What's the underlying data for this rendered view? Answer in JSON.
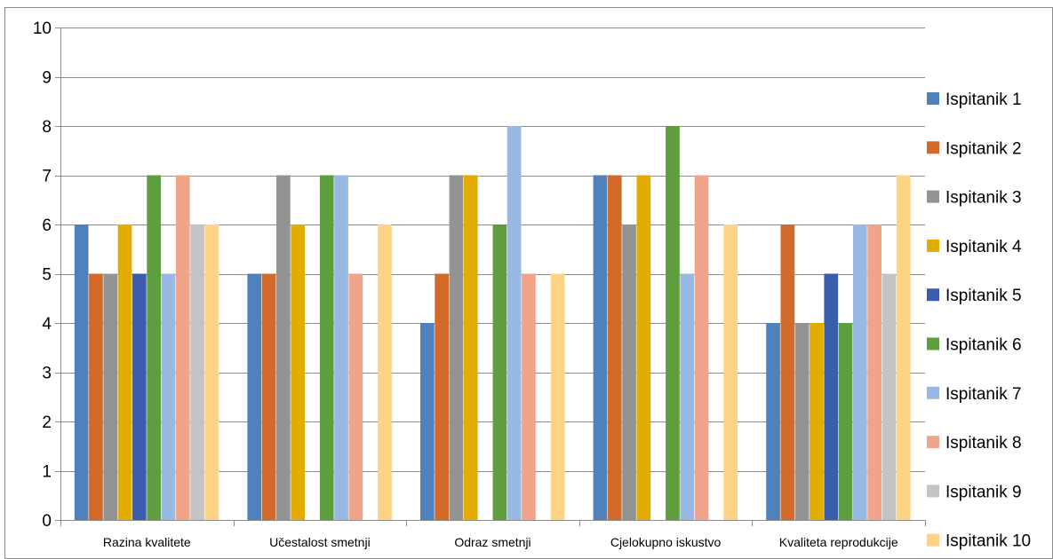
{
  "chart_data": {
    "type": "bar",
    "title": "",
    "xlabel": "",
    "ylabel": "",
    "ylim": [
      0,
      10
    ],
    "yticks": [
      "0",
      "1",
      "2",
      "3",
      "4",
      "5",
      "6",
      "7",
      "8",
      "9",
      "10"
    ],
    "grid": true,
    "legend_position": "right",
    "categories": [
      "Razina kvalitete",
      "Učestalost smetnji",
      "Odraz smetnji",
      "Cjelokupno iskustvo",
      "Kvaliteta reprodukcije"
    ],
    "series": [
      {
        "name": "Ispitanik 1",
        "color": "#4F81BD",
        "values": [
          6,
          5,
          4,
          7,
          4
        ]
      },
      {
        "name": "Ispitanik 2",
        "color": "#D46A2A",
        "values": [
          5,
          5,
          5,
          7,
          6
        ]
      },
      {
        "name": "Ispitanik 3",
        "color": "#939393",
        "values": [
          5,
          7,
          7,
          6,
          4
        ]
      },
      {
        "name": "Ispitanik 4",
        "color": "#E3AC00",
        "values": [
          6,
          6,
          7,
          7,
          4
        ]
      },
      {
        "name": "Ispitanik 5",
        "color": "#3A5DAE",
        "values": [
          5,
          0,
          0,
          0,
          5
        ]
      },
      {
        "name": "Ispitanik 6",
        "color": "#5E9E3E",
        "values": [
          7,
          7,
          6,
          8,
          4
        ]
      },
      {
        "name": "Ispitanik 7",
        "color": "#98B9E3",
        "values": [
          5,
          7,
          8,
          5,
          6
        ]
      },
      {
        "name": "Ispitanik 8",
        "color": "#F0A58A",
        "values": [
          7,
          5,
          5,
          7,
          6
        ]
      },
      {
        "name": "Ispitanik 9",
        "color": "#C4C4C4",
        "values": [
          6,
          0,
          0,
          0,
          5
        ]
      },
      {
        "name": "Ispitanik 10",
        "color": "#FED383",
        "values": [
          6,
          6,
          5,
          6,
          7
        ]
      }
    ]
  }
}
